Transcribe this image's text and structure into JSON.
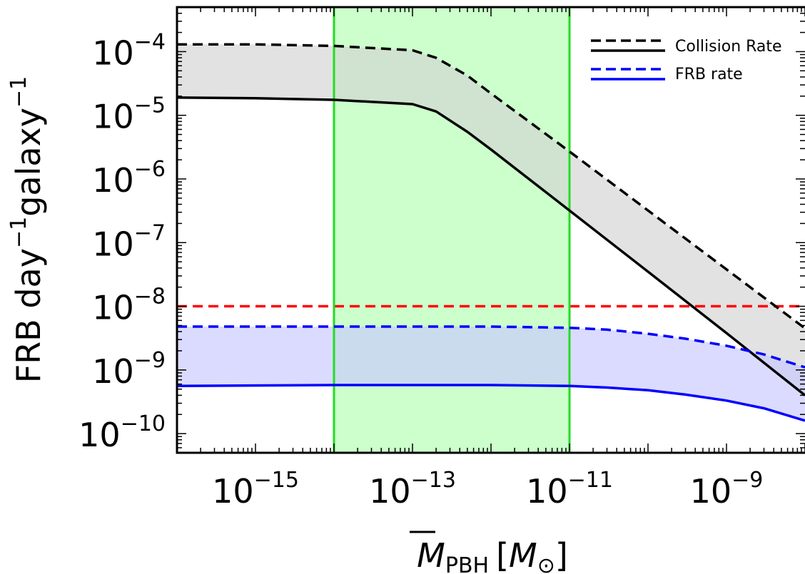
{
  "chart_data": {
    "type": "line",
    "xscale": "log",
    "yscale": "log",
    "xlim": [
      1e-16,
      1e-08
    ],
    "ylim": [
      5e-11,
      0.0005
    ],
    "xlabel": {
      "symbol": "M",
      "subscript": "PBH",
      "unit_open": "[",
      "unit_symbol": "M",
      "unit_subscript": "⊙",
      "unit_close": "]"
    },
    "ylabel": {
      "part1": "FRB day",
      "exp1": "−1",
      "part2": "galaxy",
      "exp2": "−1"
    },
    "xticks": [
      {
        "value": 1e-15,
        "base": "10",
        "exponent": "−15"
      },
      {
        "value": 1e-13,
        "base": "10",
        "exponent": "−13"
      },
      {
        "value": 1e-11,
        "base": "10",
        "exponent": "−11"
      },
      {
        "value": 1e-09,
        "base": "10",
        "exponent": "−9"
      }
    ],
    "yticks": [
      {
        "value": 0.0001,
        "base": "10",
        "exponent": "−4"
      },
      {
        "value": 1e-05,
        "base": "10",
        "exponent": "−5"
      },
      {
        "value": 1e-06,
        "base": "10",
        "exponent": "−6"
      },
      {
        "value": 1e-07,
        "base": "10",
        "exponent": "−7"
      },
      {
        "value": 1e-08,
        "base": "10",
        "exponent": "−8"
      },
      {
        "value": 1e-09,
        "base": "10",
        "exponent": "−9"
      },
      {
        "value": 1e-10,
        "base": "10",
        "exponent": "−10"
      }
    ],
    "legend": {
      "placement": "top-right",
      "entries": [
        {
          "label": "Collision Rate",
          "color": "#000000"
        },
        {
          "label": "FRB rate",
          "color": "#0000ff"
        }
      ]
    },
    "highlight_band": {
      "x_range": [
        1e-14,
        1e-11
      ],
      "fill": "#ccffcc",
      "edge": "#22dd22"
    },
    "reference_line": {
      "y": 1e-08,
      "color": "#ff0000",
      "style": "dashed"
    },
    "series": [
      {
        "color": "#000000",
        "band_fill": "#d3d3d3",
        "upper": {
          "style": "dashed",
          "x": [
            1e-16,
            1e-15,
            1e-14,
            1e-13,
            2e-13,
            5e-13,
            1e-12,
            1e-11,
            1e-10,
            1e-09,
            1e-08
          ],
          "y": [
            0.00013,
            0.00013,
            0.000123,
            0.000105,
            8e-05,
            4.2e-05,
            2.2e-05,
            2.7e-06,
            3.2e-07,
            3.8e-08,
            4.5e-09
          ]
        },
        "lower": {
          "style": "solid",
          "x": [
            1e-16,
            1e-15,
            1e-14,
            1e-13,
            2e-13,
            5e-13,
            1e-12,
            1e-11,
            1e-10,
            1e-09,
            1e-08
          ],
          "y": [
            1.9e-05,
            1.85e-05,
            1.75e-05,
            1.5e-05,
            1.15e-05,
            5.5e-06,
            2.9e-06,
            3.2e-07,
            3.5e-08,
            3.8e-09,
            4e-10
          ]
        }
      },
      {
        "color": "#0000ff",
        "band_fill": "#c8c8ff",
        "upper": {
          "style": "dashed",
          "x": [
            1e-16,
            1e-15,
            1e-14,
            1e-13,
            1e-12,
            1e-11,
            3e-11,
            1e-10,
            3e-10,
            1e-09,
            3e-09,
            1e-08
          ],
          "y": [
            4.8e-09,
            4.8e-09,
            4.8e-09,
            4.8e-09,
            4.8e-09,
            4.6e-09,
            4.3e-09,
            3.7e-09,
            3.1e-09,
            2.4e-09,
            1.75e-09,
            1.1e-09
          ]
        },
        "lower": {
          "style": "solid",
          "x": [
            1e-16,
            1e-15,
            1e-14,
            1e-13,
            1e-12,
            1e-11,
            3e-11,
            1e-10,
            3e-10,
            1e-09,
            3e-09,
            1e-08
          ],
          "y": [
            5.6e-10,
            5.7e-10,
            5.8e-10,
            5.8e-10,
            5.8e-10,
            5.6e-10,
            5.3e-10,
            4.8e-10,
            4.1e-10,
            3.3e-10,
            2.5e-10,
            1.6e-10
          ]
        }
      }
    ]
  }
}
